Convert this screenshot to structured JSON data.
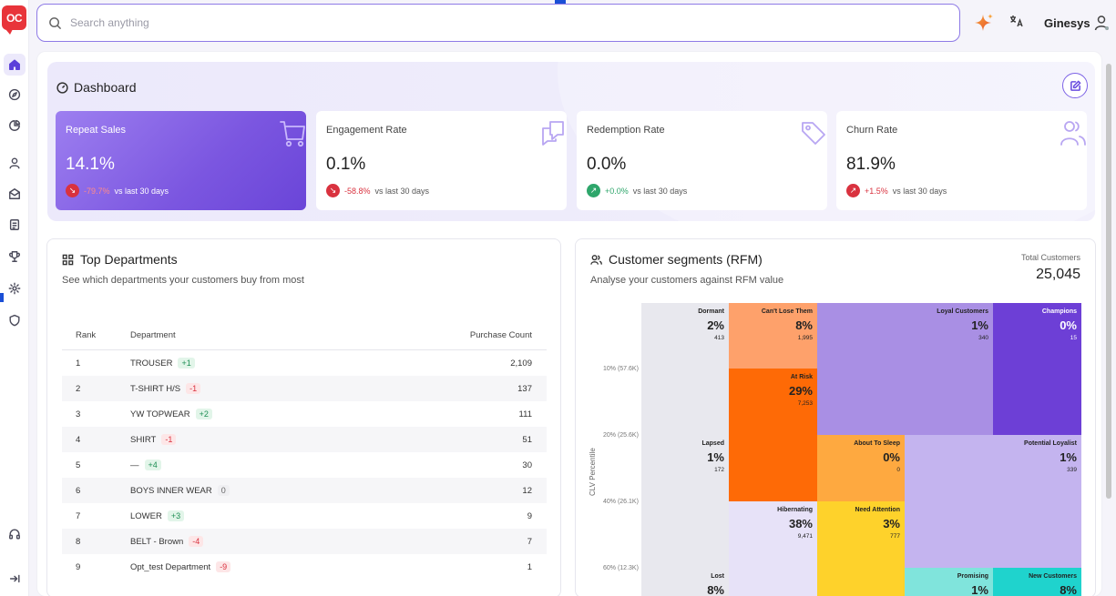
{
  "app": {
    "logo_text": "OC",
    "brand": "Ginesys"
  },
  "search": {
    "placeholder": "Search anything",
    "value": ""
  },
  "dashboard": {
    "title": "Dashboard"
  },
  "kpis": [
    {
      "title": "Repeat Sales",
      "value": "14.1%",
      "change": "-79.7%",
      "direction": "down",
      "suffix": "vs last 30 days",
      "icon": "cart-icon"
    },
    {
      "title": "Engagement Rate",
      "value": "0.1%",
      "change": "-58.8%",
      "direction": "down",
      "suffix": "vs last 30 days",
      "icon": "chat-icon"
    },
    {
      "title": "Redemption Rate",
      "value": "0.0%",
      "change": "+0.0%",
      "direction": "up",
      "suffix": "vs last 30 days",
      "icon": "tag-icon"
    },
    {
      "title": "Churn Rate",
      "value": "81.9%",
      "change": "+1.5%",
      "direction": "up-red",
      "suffix": "vs last 30 days",
      "icon": "users-icon"
    }
  ],
  "top_departments": {
    "title": "Top Departments",
    "subtitle": "See which departments your customers buy from most",
    "headers": {
      "rank": "Rank",
      "department": "Department",
      "count": "Purchase Count"
    },
    "rows": [
      {
        "rank": "1",
        "department": "TROUSER",
        "change": "+1",
        "change_type": "pos",
        "count": "2,109"
      },
      {
        "rank": "2",
        "department": "T-SHIRT H/S",
        "change": "-1",
        "change_type": "neg",
        "count": "137"
      },
      {
        "rank": "3",
        "department": "YW TOPWEAR",
        "change": "+2",
        "change_type": "pos",
        "count": "111"
      },
      {
        "rank": "4",
        "department": "SHIRT",
        "change": "-1",
        "change_type": "neg",
        "count": "51"
      },
      {
        "rank": "5",
        "department": "—",
        "change": "+4",
        "change_type": "pos",
        "count": "30"
      },
      {
        "rank": "6",
        "department": "BOYS INNER WEAR",
        "change": "0",
        "change_type": "zero",
        "count": "12"
      },
      {
        "rank": "7",
        "department": "LOWER",
        "change": "+3",
        "change_type": "pos",
        "count": "9"
      },
      {
        "rank": "8",
        "department": "BELT - Brown",
        "change": "-4",
        "change_type": "neg",
        "count": "7"
      },
      {
        "rank": "9",
        "department": "Opt_test Department",
        "change": "-9",
        "change_type": "neg",
        "count": "1"
      }
    ]
  },
  "rfm": {
    "title": "Customer segments (RFM)",
    "subtitle": "Analyse your customers against RFM value",
    "total_label": "Total Customers",
    "total_value": "25,045",
    "y_axis_title": "CLV Percentile",
    "y_ticks": [
      "10% (57.6K)",
      "20% (25.6K)",
      "40% (26.1K)",
      "60% (12.3K)"
    ],
    "segments": [
      {
        "name": "Dormant",
        "pct": "2%",
        "count": "413",
        "color": "#e8e8ee",
        "text": "#222"
      },
      {
        "name": "Can't Lose Them",
        "pct": "8%",
        "count": "1,995",
        "color": "#fea16b",
        "text": "#222"
      },
      {
        "name": "Loyal Customers",
        "pct": "1%",
        "count": "340",
        "color": "#a98fe4",
        "text": "#222"
      },
      {
        "name": "Champions",
        "pct": "0%",
        "count": "15",
        "color": "#6d3fd6",
        "text": "#fff"
      },
      {
        "name": "At Risk",
        "pct": "29%",
        "count": "7,253",
        "color": "#fe6a06",
        "text": "#222"
      },
      {
        "name": "Lapsed",
        "pct": "1%",
        "count": "172",
        "color": "#e8e8ee",
        "text": "#222"
      },
      {
        "name": "About To Sleep",
        "pct": "0%",
        "count": "0",
        "color": "#fea940",
        "text": "#222"
      },
      {
        "name": "Potential Loyalist",
        "pct": "1%",
        "count": "339",
        "color": "#c4b4ef",
        "text": "#222"
      },
      {
        "name": "Hibernating",
        "pct": "38%",
        "count": "9,471",
        "color": "#e7e2f8",
        "text": "#222"
      },
      {
        "name": "Need Attention",
        "pct": "3%",
        "count": "777",
        "color": "#fed22b",
        "text": "#222"
      },
      {
        "name": "Lost",
        "pct": "8%",
        "count": "",
        "color": "#e8e8ee",
        "text": "#222"
      },
      {
        "name": "Promising",
        "pct": "1%",
        "count": "",
        "color": "#80e4dc",
        "text": "#222"
      },
      {
        "name": "New Customers",
        "pct": "8%",
        "count": "",
        "color": "#1fd3cd",
        "text": "#222"
      }
    ]
  },
  "nav": {
    "items": [
      "home-icon",
      "compass-icon",
      "pie-chart-icon",
      "user-icon",
      "mail-icon",
      "report-icon",
      "trophy-icon",
      "settings-icon",
      "shield-icon",
      "headset-icon",
      "collapse-icon"
    ]
  }
}
